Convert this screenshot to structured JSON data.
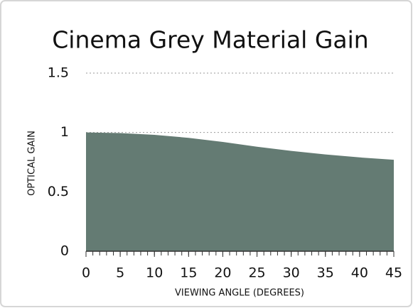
{
  "chart_data": {
    "type": "area",
    "title": "Cinema Grey Material Gain",
    "x_label": "VIEWING ANGLE (DEGREES)",
    "y_label": "OPTICAL GAIN",
    "x": [
      0,
      5,
      10,
      15,
      20,
      25,
      30,
      35,
      40,
      45
    ],
    "values": [
      1,
      0.995,
      0.98,
      0.955,
      0.92,
      0.88,
      0.845,
      0.815,
      0.79,
      0.77
    ],
    "color": "#647b73",
    "xlim": [
      0,
      45
    ],
    "xticks": [
      0,
      5,
      10,
      15,
      20,
      25,
      30,
      35,
      40,
      45
    ],
    "xminor_step": 1,
    "ylim": [
      0,
      1.5
    ],
    "yticks": [
      0,
      0.5,
      1,
      1.5
    ],
    "grid": true
  }
}
